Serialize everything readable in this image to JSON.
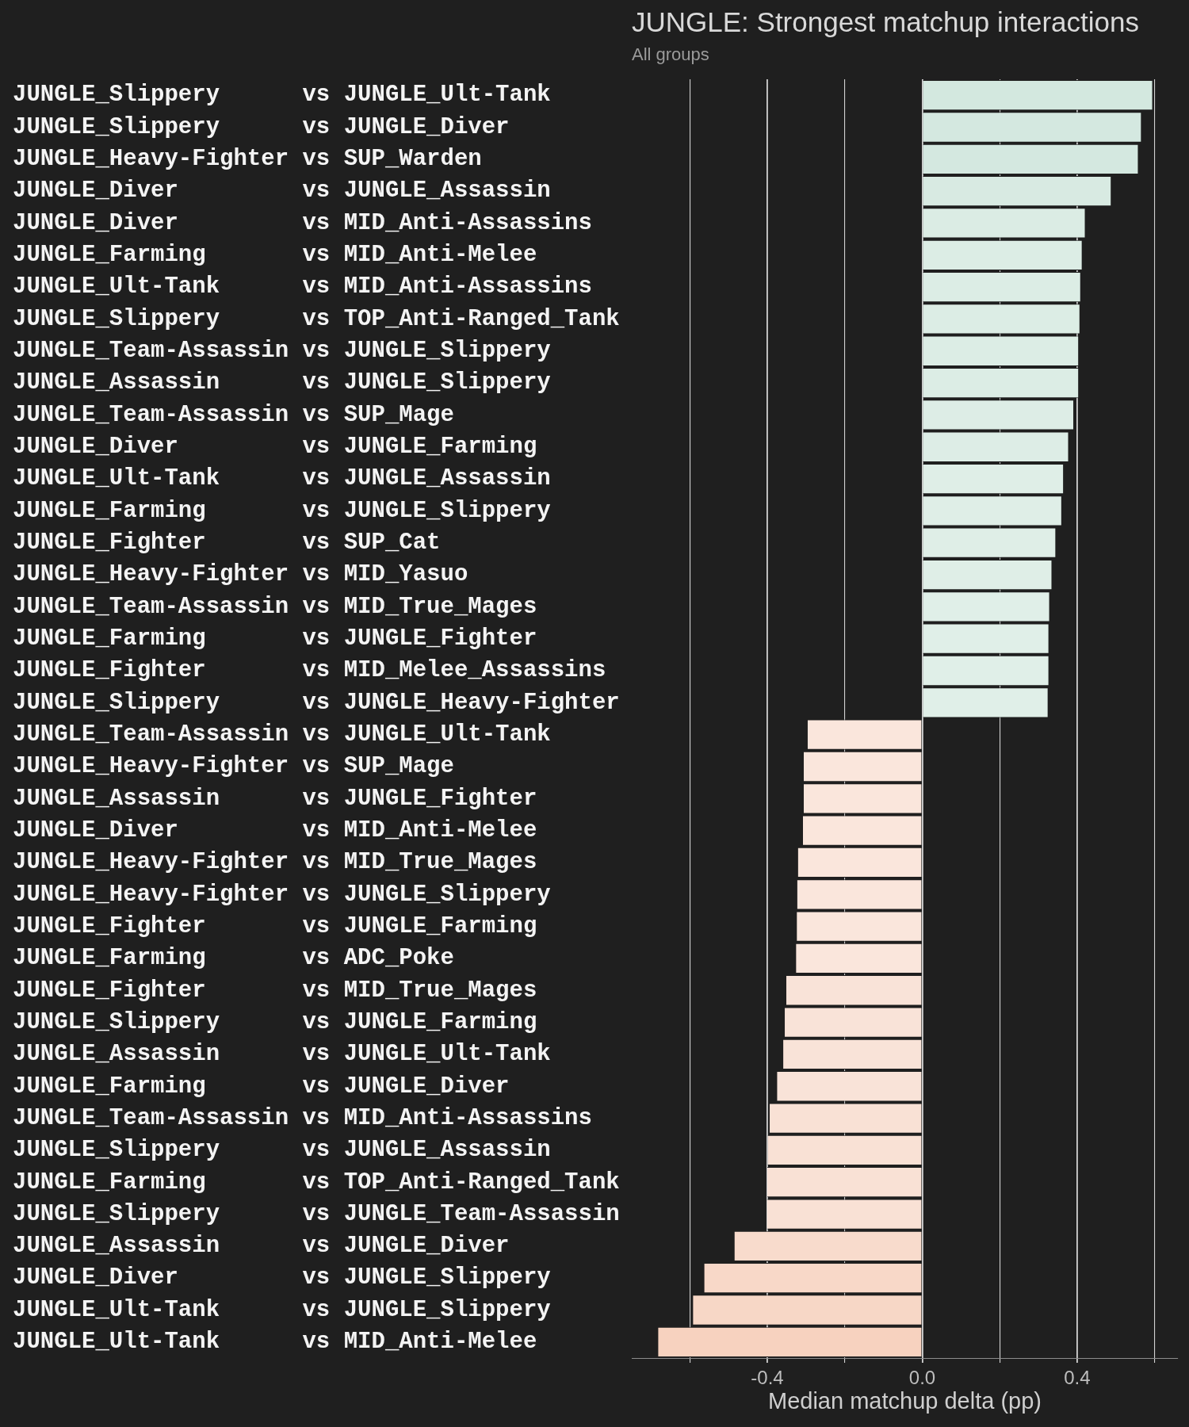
{
  "chart_data": {
    "type": "bar",
    "orientation": "horizontal",
    "title": "JUNGLE: Strongest matchup interactions",
    "subtitle": "All groups",
    "xlabel": "Median matchup delta (pp)",
    "categories": [
      "JUNGLE_Slippery      vs JUNGLE_Ult-Tank",
      "JUNGLE_Slippery      vs JUNGLE_Diver",
      "JUNGLE_Heavy-Fighter vs SUP_Warden",
      "JUNGLE_Diver         vs JUNGLE_Assassin",
      "JUNGLE_Diver         vs MID_Anti-Assassins",
      "JUNGLE_Farming       vs MID_Anti-Melee",
      "JUNGLE_Ult-Tank      vs MID_Anti-Assassins",
      "JUNGLE_Slippery      vs TOP_Anti-Ranged_Tank",
      "JUNGLE_Team-Assassin vs JUNGLE_Slippery",
      "JUNGLE_Assassin      vs JUNGLE_Slippery",
      "JUNGLE_Team-Assassin vs SUP_Mage",
      "JUNGLE_Diver         vs JUNGLE_Farming",
      "JUNGLE_Ult-Tank      vs JUNGLE_Assassin",
      "JUNGLE_Farming       vs JUNGLE_Slippery",
      "JUNGLE_Fighter       vs SUP_Cat",
      "JUNGLE_Heavy-Fighter vs MID_Yasuo",
      "JUNGLE_Team-Assassin vs MID_True_Mages",
      "JUNGLE_Farming       vs JUNGLE_Fighter",
      "JUNGLE_Fighter       vs MID_Melee_Assassins",
      "JUNGLE_Slippery      vs JUNGLE_Heavy-Fighter",
      "JUNGLE_Team-Assassin vs JUNGLE_Ult-Tank",
      "JUNGLE_Heavy-Fighter vs SUP_Mage",
      "JUNGLE_Assassin      vs JUNGLE_Fighter",
      "JUNGLE_Diver         vs MID_Anti-Melee",
      "JUNGLE_Heavy-Fighter vs MID_True_Mages",
      "JUNGLE_Heavy-Fighter vs JUNGLE_Slippery",
      "JUNGLE_Fighter       vs JUNGLE_Farming",
      "JUNGLE_Farming       vs ADC_Poke",
      "JUNGLE_Fighter       vs MID_True_Mages",
      "JUNGLE_Slippery      vs JUNGLE_Farming",
      "JUNGLE_Assassin      vs JUNGLE_Ult-Tank",
      "JUNGLE_Farming       vs JUNGLE_Diver",
      "JUNGLE_Team-Assassin vs MID_Anti-Assassins",
      "JUNGLE_Slippery      vs JUNGLE_Assassin",
      "JUNGLE_Farming       vs TOP_Anti-Ranged_Tank",
      "JUNGLE_Slippery      vs JUNGLE_Team-Assassin",
      "JUNGLE_Assassin      vs JUNGLE_Diver",
      "JUNGLE_Diver         vs JUNGLE_Slippery",
      "JUNGLE_Ult-Tank      vs JUNGLE_Slippery",
      "JUNGLE_Ult-Tank      vs MID_Anti-Melee"
    ],
    "values": [
      0.594,
      0.565,
      0.557,
      0.487,
      0.42,
      0.412,
      0.408,
      0.406,
      0.403,
      0.403,
      0.39,
      0.377,
      0.364,
      0.359,
      0.344,
      0.334,
      0.328,
      0.326,
      0.326,
      0.324,
      -0.296,
      -0.306,
      -0.306,
      -0.308,
      -0.321,
      -0.323,
      -0.324,
      -0.326,
      -0.351,
      -0.355,
      -0.359,
      -0.375,
      -0.394,
      -0.399,
      -0.4,
      -0.401,
      -0.485,
      -0.563,
      -0.592,
      -0.682
    ],
    "colors": [
      "#d3e8df",
      "#d4e8e0",
      "#d4e8e0",
      "#d8eae2",
      "#dbece4",
      "#dcede5",
      "#dcede5",
      "#dcede5",
      "#dcede5",
      "#dcede5",
      "#ddede6",
      "#ddede6",
      "#dfeee7",
      "#dfeee7",
      "#dfeee7",
      "#dfeee7",
      "#e0efe8",
      "#e0efe8",
      "#e0efe8",
      "#e0efe8",
      "#fae6dc",
      "#fae6dc",
      "#fae6dc",
      "#fae6dc",
      "#fae6dc",
      "#fae6dc",
      "#fae6dc",
      "#fae6dc",
      "#f9e3d8",
      "#f9e3d8",
      "#f9e3d8",
      "#f9e3d8",
      "#f9e1d5",
      "#f9e1d5",
      "#f9e1d5",
      "#f9e1d5",
      "#f8dbcc",
      "#f8d8c8",
      "#f7d7c6",
      "#f7d2bf"
    ],
    "xlim": [
      -0.75,
      0.66
    ],
    "xticks": [
      {
        "value": -0.6,
        "label": null
      },
      {
        "value": -0.4,
        "label": "-0.4"
      },
      {
        "value": -0.2,
        "label": null
      },
      {
        "value": 0,
        "label": "0.0"
      },
      {
        "value": 0.2,
        "label": null
      },
      {
        "value": 0.4,
        "label": "0.4"
      },
      {
        "value": 0.6,
        "label": null
      }
    ],
    "grid": "x"
  }
}
